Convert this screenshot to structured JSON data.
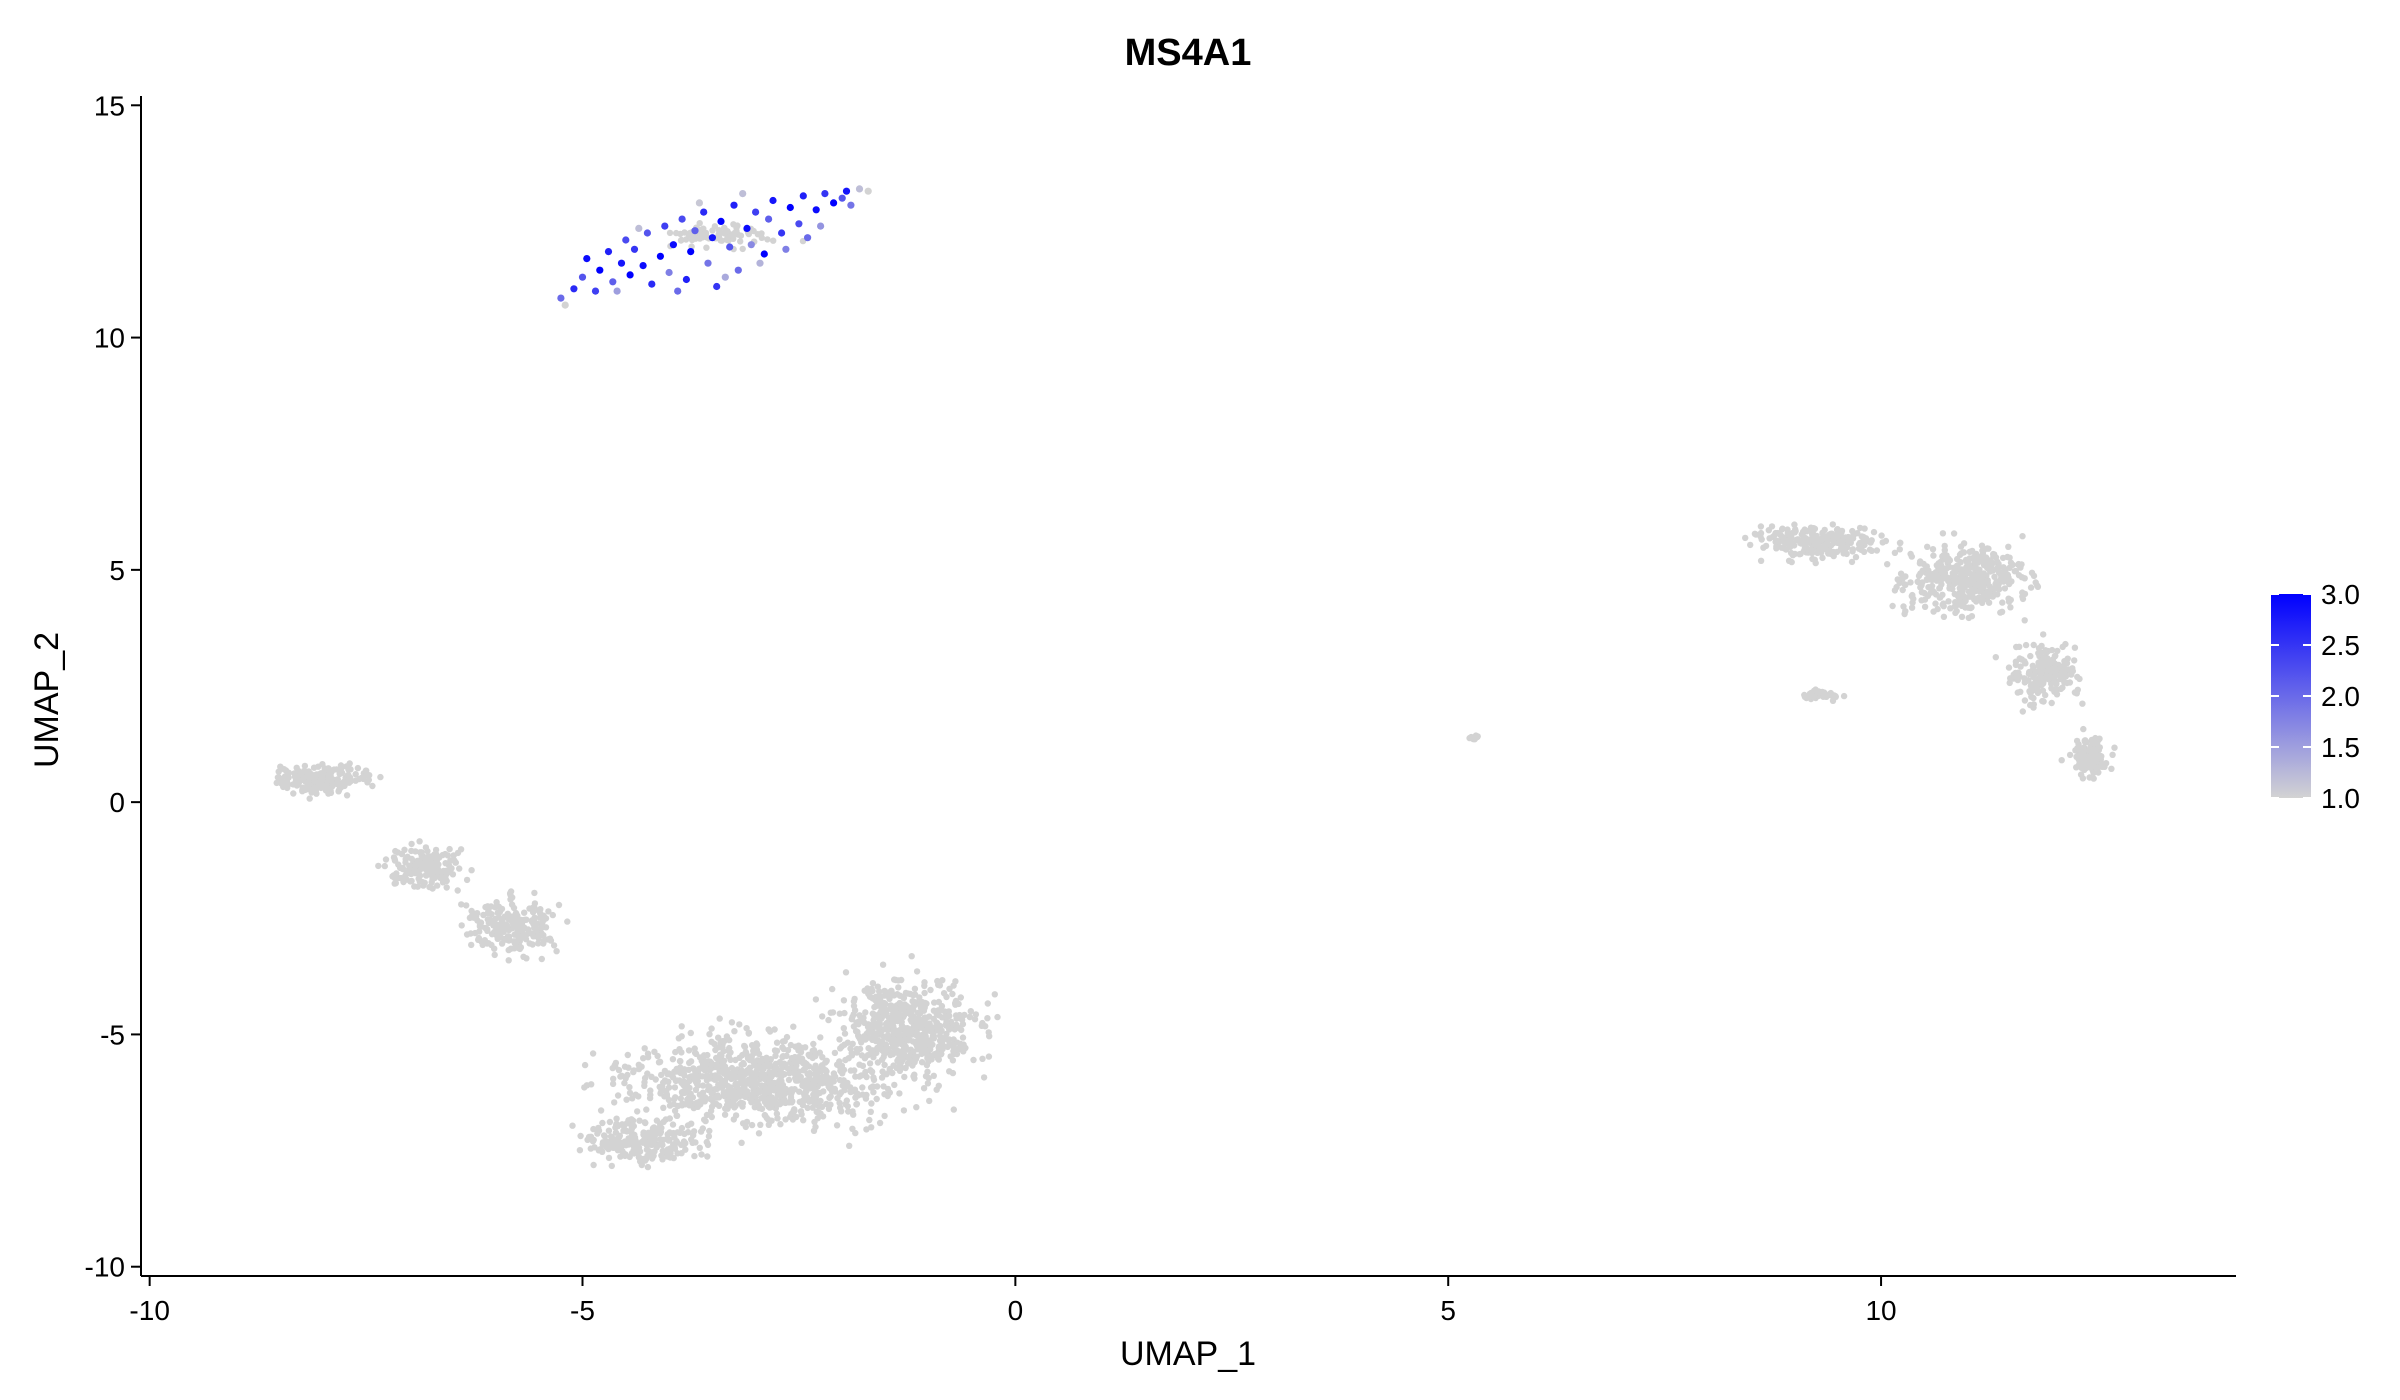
{
  "chart_data": {
    "type": "scatter",
    "title": "MS4A1",
    "xlabel": "UMAP_1",
    "ylabel": "UMAP_2",
    "xlim": [
      -10.1,
      14.1
    ],
    "ylim": [
      -10.2,
      15.2
    ],
    "x_ticks": [
      -10,
      -5,
      0,
      5,
      10
    ],
    "y_ticks": [
      -10,
      -5,
      0,
      5,
      10,
      15
    ],
    "x_tick_labels": [
      "-10",
      "-5",
      "0",
      "5",
      "10"
    ],
    "y_tick_labels": [
      "-10",
      "-5",
      "0",
      "5",
      "10",
      "15"
    ],
    "grid": false,
    "legend": {
      "type": "colorbar",
      "placement": "right",
      "range": [
        1.0,
        3.0
      ],
      "ticks": [
        3.0,
        2.5,
        2.0,
        1.5,
        1.0
      ],
      "tick_labels": [
        "3.0",
        "2.5",
        "2.0",
        "1.5",
        "1.0"
      ]
    },
    "colors": {
      "low": "#d3d3d3",
      "high": "#0000ff"
    },
    "series": [
      {
        "points": [
          [
            -5.25,
            10.85,
            2.0
          ],
          [
            -5.1,
            11.05,
            2.6
          ],
          [
            -5.0,
            11.3,
            2.2
          ],
          [
            -4.95,
            11.7,
            2.9
          ],
          [
            -4.85,
            11.0,
            2.4
          ],
          [
            -4.8,
            11.45,
            3.0
          ],
          [
            -4.7,
            11.85,
            2.7
          ],
          [
            -4.65,
            11.2,
            2.1
          ],
          [
            -4.55,
            11.6,
            2.8
          ],
          [
            -4.5,
            12.1,
            2.3
          ],
          [
            -4.45,
            11.35,
            3.0
          ],
          [
            -4.4,
            11.9,
            2.5
          ],
          [
            -4.3,
            11.55,
            2.9
          ],
          [
            -4.25,
            12.25,
            2.2
          ],
          [
            -4.2,
            11.15,
            2.6
          ],
          [
            -4.1,
            11.75,
            3.0
          ],
          [
            -4.05,
            12.4,
            2.4
          ],
          [
            -4.0,
            11.4,
            1.8
          ],
          [
            -3.95,
            12.0,
            2.9
          ],
          [
            -3.85,
            12.55,
            2.3
          ],
          [
            -3.8,
            11.25,
            2.7
          ],
          [
            -3.75,
            11.85,
            3.0
          ],
          [
            -3.7,
            12.3,
            2.1
          ],
          [
            -3.6,
            12.7,
            2.6
          ],
          [
            -3.55,
            11.6,
            1.9
          ],
          [
            -3.5,
            12.15,
            2.8
          ],
          [
            -3.45,
            11.1,
            2.5
          ],
          [
            -3.4,
            12.5,
            3.0
          ],
          [
            -3.3,
            11.95,
            2.2
          ],
          [
            -3.25,
            12.85,
            2.7
          ],
          [
            -3.2,
            11.45,
            2.0
          ],
          [
            -3.1,
            12.35,
            2.9
          ],
          [
            -3.05,
            12.0,
            1.7
          ],
          [
            -3.0,
            12.7,
            2.4
          ],
          [
            -2.9,
            11.8,
            3.0
          ],
          [
            -2.85,
            12.55,
            2.1
          ],
          [
            -2.8,
            12.95,
            2.8
          ],
          [
            -2.7,
            12.25,
            2.5
          ],
          [
            -2.65,
            11.9,
            1.8
          ],
          [
            -2.6,
            12.8,
            3.0
          ],
          [
            -2.5,
            12.45,
            2.3
          ],
          [
            -2.45,
            13.05,
            2.7
          ],
          [
            -2.4,
            12.15,
            2.0
          ],
          [
            -2.3,
            12.75,
            2.9
          ],
          [
            -2.25,
            12.4,
            1.6
          ],
          [
            -2.2,
            13.1,
            2.5
          ],
          [
            -2.1,
            12.9,
            3.0
          ],
          [
            -2.0,
            13.0,
            2.2
          ],
          [
            -1.95,
            13.15,
            2.8
          ],
          [
            -1.9,
            12.85,
            1.9
          ],
          [
            -1.8,
            13.2,
            1.2
          ],
          [
            -1.7,
            13.15,
            1.0
          ],
          [
            -5.2,
            10.7,
            1.0
          ],
          [
            -4.6,
            11.0,
            1.5
          ],
          [
            -3.9,
            11.0,
            2.0
          ],
          [
            -3.35,
            11.3,
            1.4
          ],
          [
            -2.95,
            11.6,
            1.3
          ],
          [
            -4.35,
            12.35,
            1.2
          ],
          [
            -3.65,
            12.9,
            1.1
          ],
          [
            -3.15,
            13.1,
            1.2
          ]
        ]
      }
    ]
  }
}
